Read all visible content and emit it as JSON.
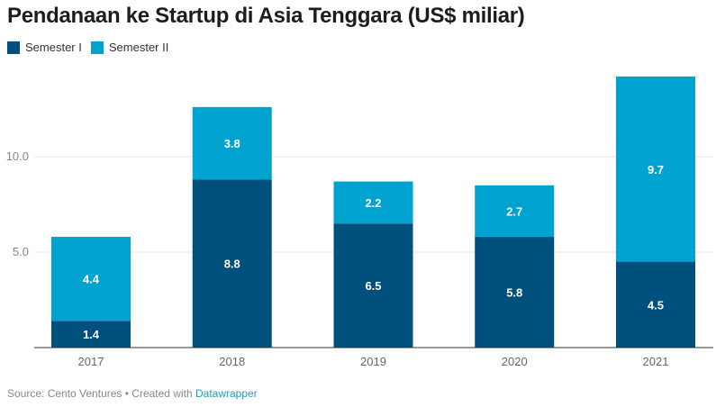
{
  "chart_data": {
    "type": "bar",
    "stacked": true,
    "title": "Pendanaan ke Startup di Asia Tenggara (US$ miliar)",
    "xlabel": "",
    "ylabel": "",
    "categories": [
      "2017",
      "2018",
      "2019",
      "2020",
      "2021"
    ],
    "series": [
      {
        "name": "Semester I",
        "color": "#00507d",
        "values": [
          1.4,
          8.8,
          6.5,
          5.8,
          4.5
        ],
        "labels": [
          "1.4",
          "8.8",
          "6.5",
          "5.8",
          "4.5"
        ]
      },
      {
        "name": "Semester II",
        "color": "#00a3d0",
        "values": [
          4.4,
          3.8,
          2.2,
          2.7,
          9.7
        ],
        "labels": [
          "4.4",
          "3.8",
          "2.2",
          "2.7",
          "9.7"
        ]
      }
    ],
    "yticks": [
      5.0,
      10.0
    ],
    "ytick_labels": [
      "5.0",
      "10.0"
    ],
    "ylim": [
      0,
      14.2
    ],
    "grid": true,
    "legend_position": "top-left"
  },
  "footer": {
    "source_text": "Source: Cento Ventures • Created with ",
    "link_text": "Datawrapper"
  }
}
